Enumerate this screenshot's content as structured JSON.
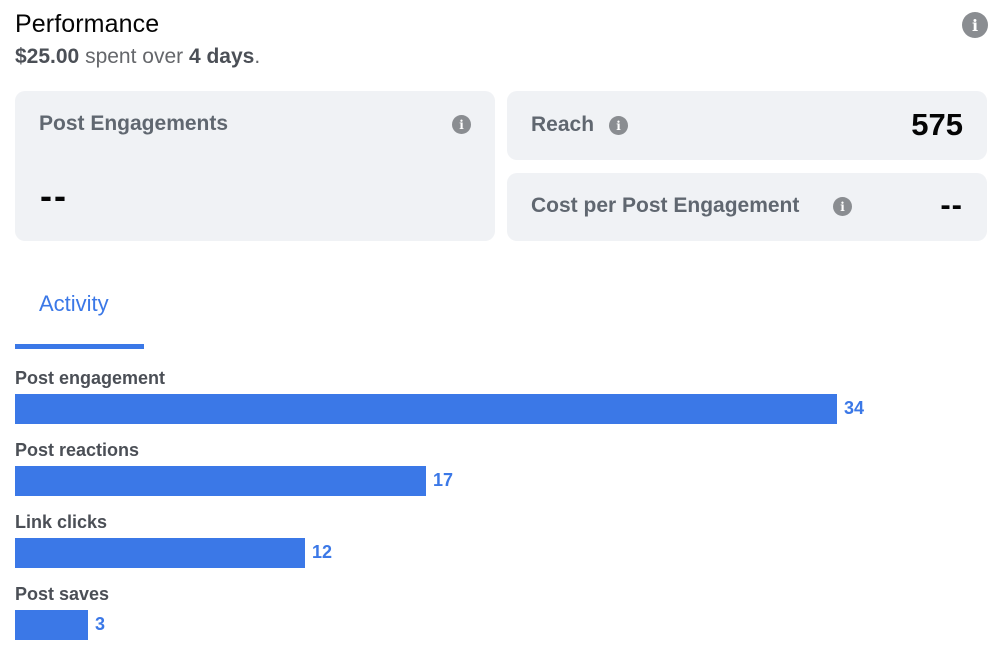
{
  "header": {
    "title": "Performance",
    "spent_amount": "$25.00",
    "spent_text": " spent over ",
    "duration": "4 days",
    "period": "."
  },
  "cards": {
    "post_engagements": {
      "label": "Post Engagements",
      "value": "--"
    },
    "reach": {
      "label": "Reach",
      "value": "575"
    },
    "cost_per_engagement": {
      "label": "Cost per Post Engagement",
      "value": "--"
    }
  },
  "tabs": [
    {
      "label": "Activity",
      "active": true
    }
  ],
  "activity": {
    "bar_color": "#3b78e7",
    "max_value": 34,
    "items": [
      {
        "label": "Post engagement",
        "value": 34
      },
      {
        "label": "Post reactions",
        "value": 17
      },
      {
        "label": "Link clicks",
        "value": 12
      },
      {
        "label": "Post saves",
        "value": 3
      }
    ]
  },
  "icons": {
    "info": "info-icon"
  }
}
